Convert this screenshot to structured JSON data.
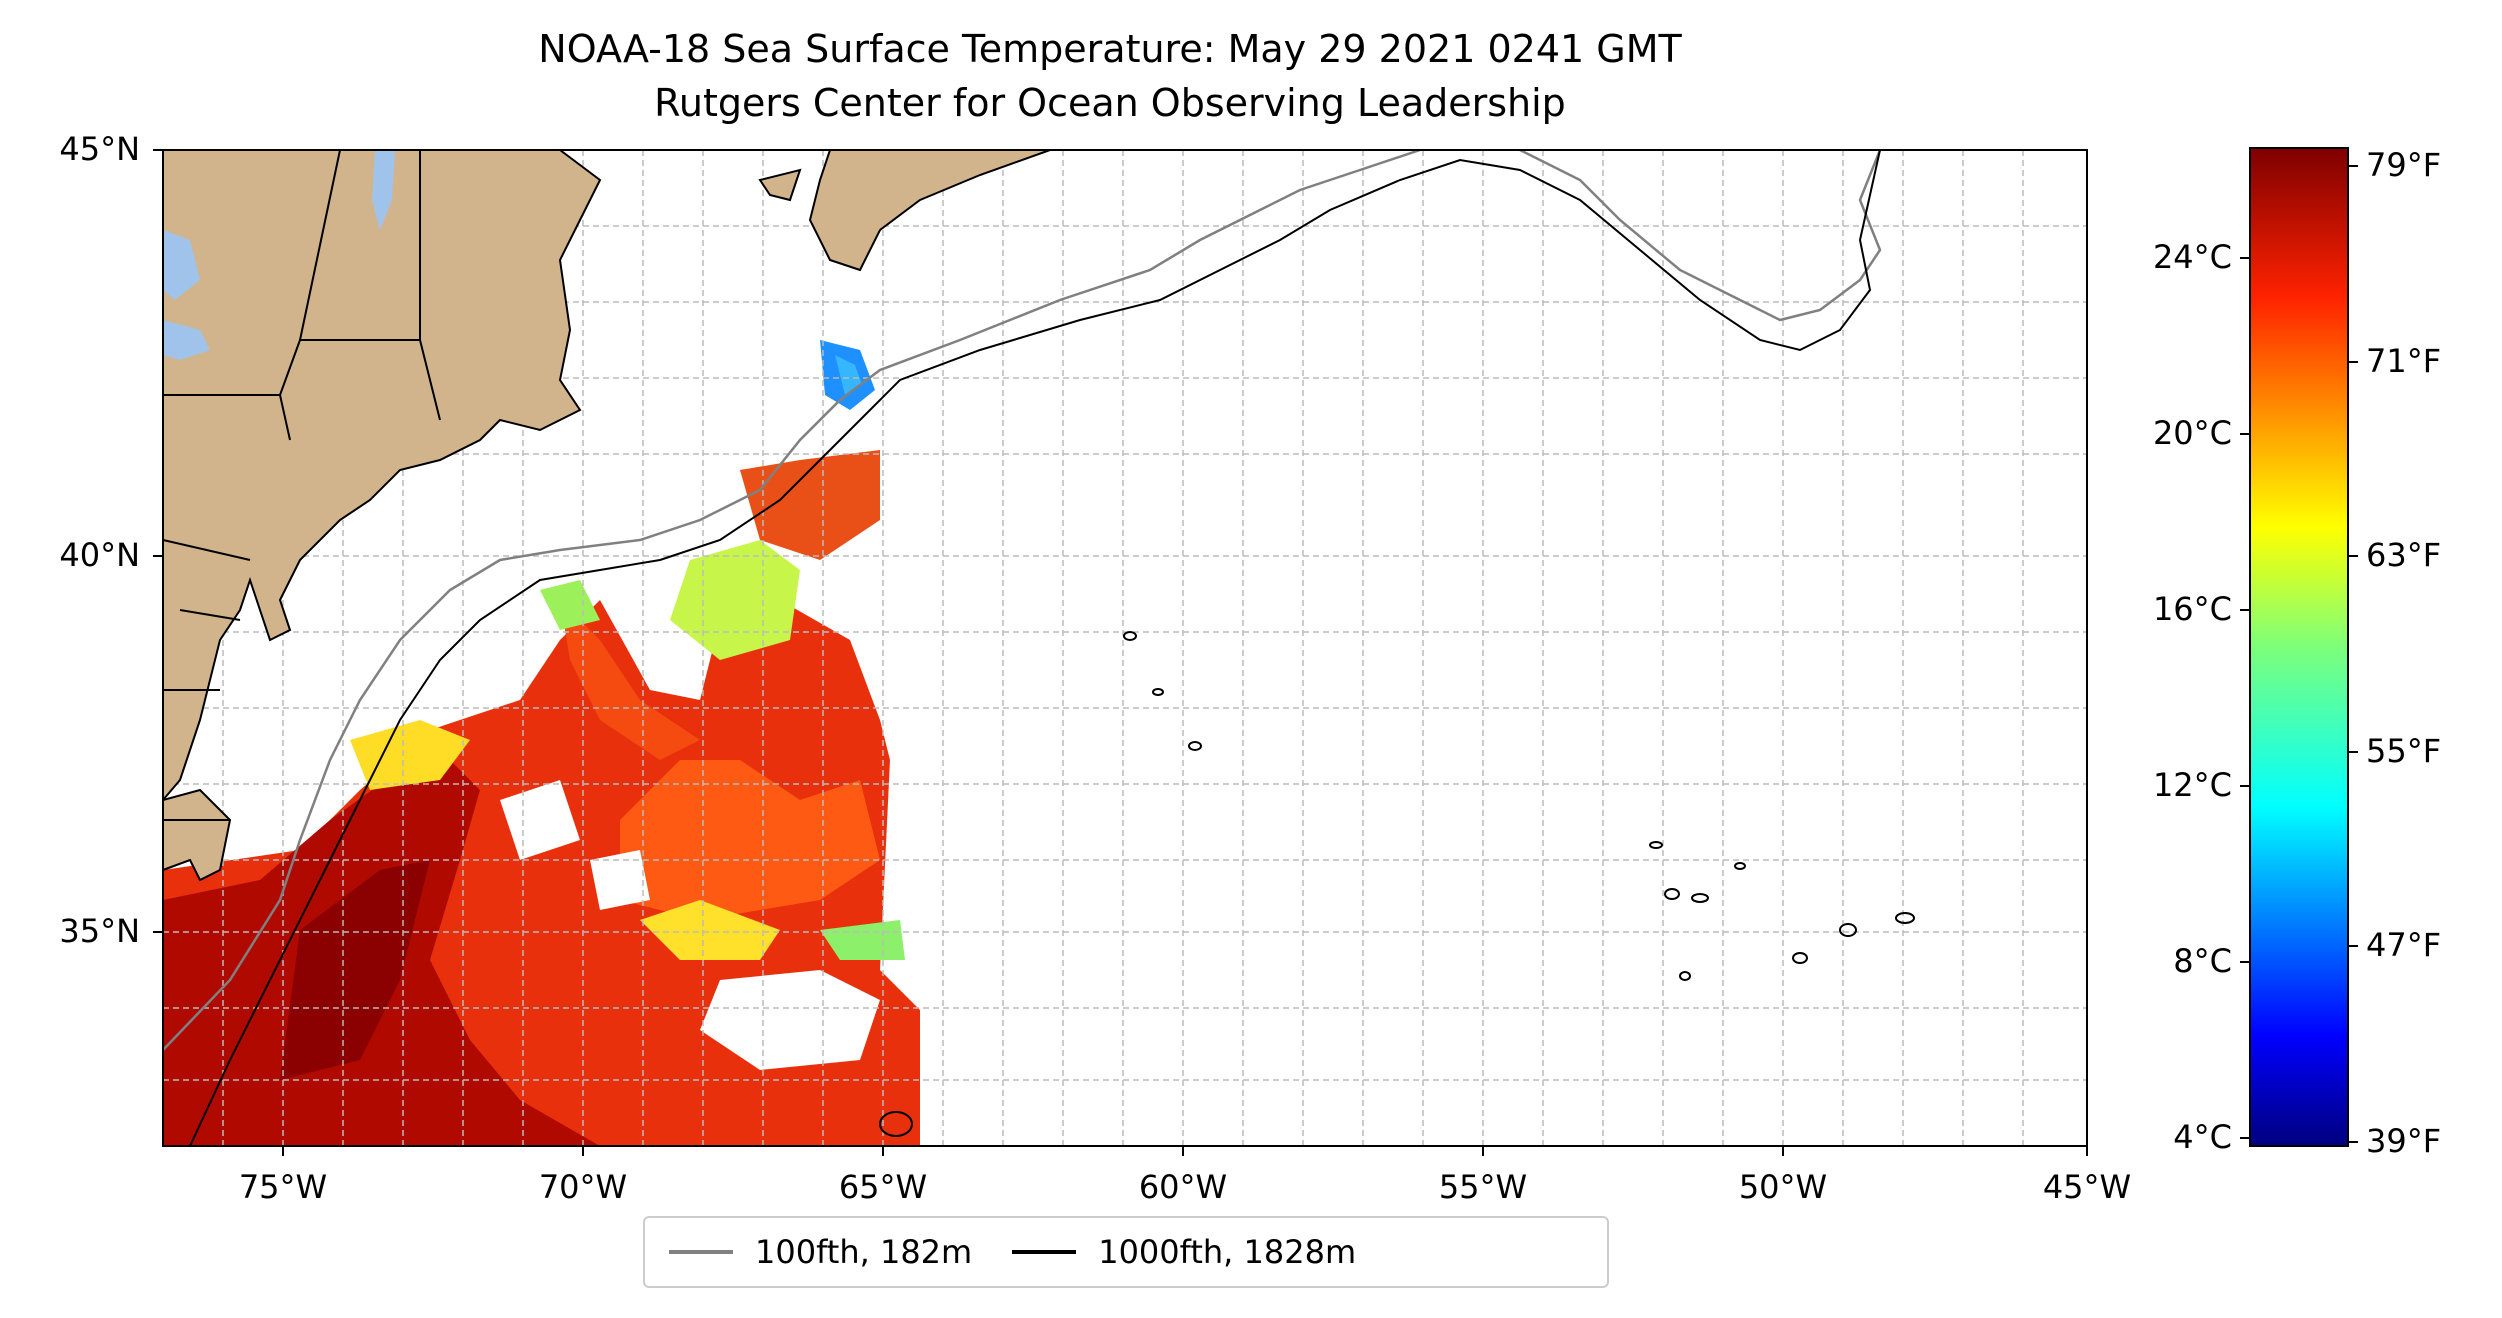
{
  "title": {
    "line1": "NOAA-18 Sea Surface Temperature: May 29 2021 0241 GMT",
    "line2": "Rutgers Center for Ocean Observing Leadership"
  },
  "map": {
    "lat_range": [
      32.5,
      45
    ],
    "lon_range": [
      -77,
      -45
    ],
    "lat_ticks": [
      "45°N",
      "40°N",
      "35°N"
    ],
    "lon_ticks": [
      "75°W",
      "70°W",
      "65°W",
      "60°W",
      "55°W",
      "50°W",
      "45°W"
    ],
    "colors": {
      "land": "#d2b48c",
      "lakes": "#9fc3ea",
      "ocean": "#ffffff",
      "grid": "#bbbbbb"
    }
  },
  "colorbar": {
    "celsius_ticks": [
      "24°C",
      "20°C",
      "16°C",
      "12°C",
      "8°C",
      "4°C"
    ],
    "fahrenheit_ticks": [
      "79°F",
      "71°F",
      "63°F",
      "55°F",
      "47°F",
      "39°F"
    ],
    "colormap": "jet"
  },
  "legend": {
    "items": [
      {
        "label": "100fth, 182m",
        "color": "#808080"
      },
      {
        "label": "1000fth, 1828m",
        "color": "#000000"
      }
    ]
  }
}
